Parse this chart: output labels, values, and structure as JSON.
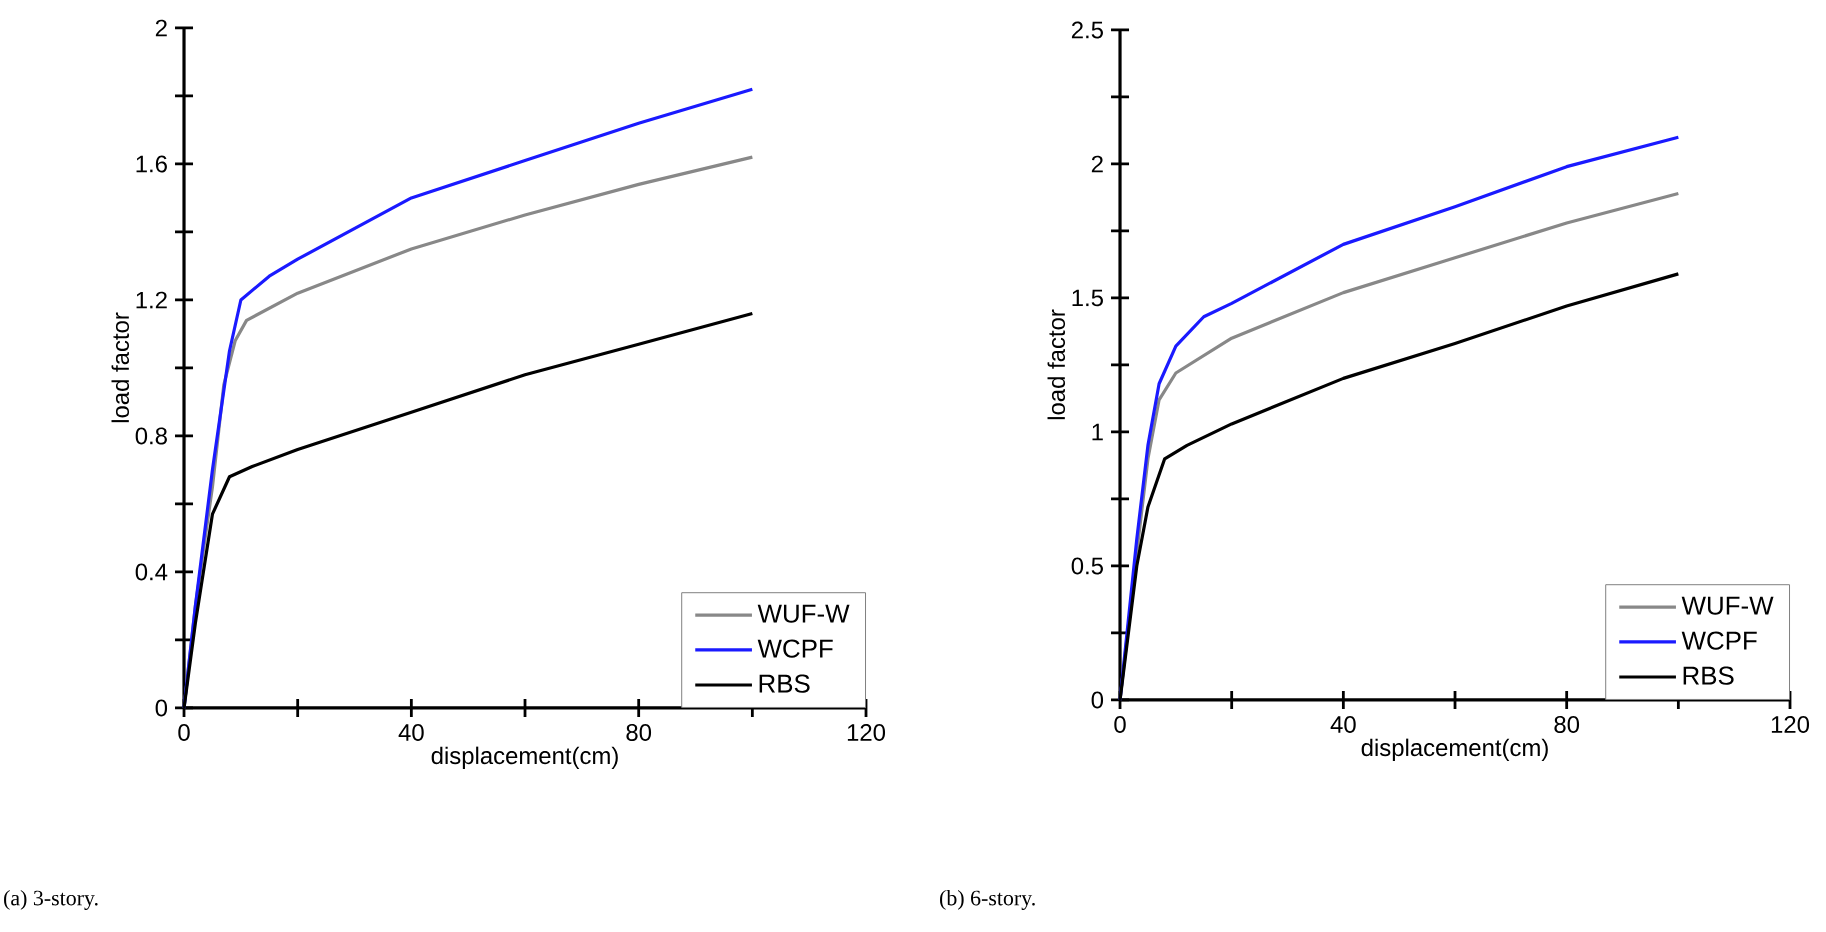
{
  "chart_data": [
    {
      "type": "line",
      "xlabel": "displacement(cm)",
      "ylabel": "load factor",
      "annotations": [
        "(a) 3-story."
      ],
      "xlim": [
        0,
        120
      ],
      "ylim": [
        0,
        2
      ],
      "xticks": [
        0,
        {
          "value": 20,
          "label": null
        },
        40,
        {
          "value": 60,
          "label": null
        },
        80,
        {
          "value": 100,
          "label": null
        },
        120
      ],
      "yticks": [
        0,
        {
          "value": 0.2,
          "label": null
        },
        0.4,
        {
          "value": 0.6,
          "label": null
        },
        0.8,
        {
          "value": 1.0,
          "label": null
        },
        1.2,
        {
          "value": 1.4,
          "label": null
        },
        1.6,
        {
          "value": 1.8,
          "label": null
        },
        2
      ],
      "grid": false,
      "legend": "bottom right",
      "marker": "none",
      "line_style": "solid",
      "series": [
        {
          "name": "WUF-W",
          "color": "#888888",
          "x": [
            0,
            2,
            5,
            7,
            9,
            11,
            20,
            40,
            60,
            80,
            100
          ],
          "values": [
            0,
            0.3,
            0.65,
            0.95,
            1.08,
            1.14,
            1.22,
            1.35,
            1.45,
            1.54,
            1.62
          ]
        },
        {
          "name": "WCPF",
          "color": "#1a1aff",
          "x": [
            0,
            2,
            5,
            8,
            10,
            15,
            20,
            40,
            60,
            80,
            100
          ],
          "values": [
            0,
            0.3,
            0.7,
            1.05,
            1.2,
            1.27,
            1.32,
            1.5,
            1.61,
            1.72,
            1.82
          ]
        },
        {
          "name": "RBS",
          "color": "#000000",
          "x": [
            0,
            2,
            5,
            8,
            12,
            20,
            40,
            60,
            80,
            100
          ],
          "values": [
            0,
            0.25,
            0.57,
            0.68,
            0.71,
            0.76,
            0.87,
            0.98,
            1.07,
            1.16
          ]
        }
      ]
    },
    {
      "type": "line",
      "xlabel": "displacement(cm)",
      "ylabel": "load factor",
      "annotations": [
        "(b) 6-story."
      ],
      "xlim": [
        0,
        120
      ],
      "ylim": [
        0,
        2.5
      ],
      "xticks": [
        0,
        {
          "value": 20,
          "label": null
        },
        40,
        {
          "value": 60,
          "label": null
        },
        80,
        {
          "value": 100,
          "label": null
        },
        120
      ],
      "yticks": [
        0,
        {
          "value": 0.25,
          "label": null
        },
        0.5,
        {
          "value": 0.75,
          "label": null
        },
        1,
        {
          "value": 1.25,
          "label": null
        },
        1.5,
        {
          "value": 1.75,
          "label": null
        },
        2,
        {
          "value": 2.25,
          "label": null
        },
        2.5
      ],
      "grid": false,
      "legend": "bottom right",
      "marker": "none",
      "line_style": "solid",
      "series": [
        {
          "name": "WUF-W",
          "color": "#888888",
          "x": [
            0,
            3,
            5,
            7,
            10,
            20,
            40,
            60,
            80,
            100
          ],
          "values": [
            0,
            0.55,
            0.9,
            1.12,
            1.22,
            1.35,
            1.52,
            1.65,
            1.78,
            1.89
          ]
        },
        {
          "name": "WCPF",
          "color": "#1a1aff",
          "x": [
            0,
            3,
            5,
            7,
            10,
            15,
            20,
            40,
            60,
            80,
            100
          ],
          "values": [
            0,
            0.6,
            0.95,
            1.18,
            1.32,
            1.43,
            1.48,
            1.7,
            1.84,
            1.99,
            2.1
          ]
        },
        {
          "name": "RBS",
          "color": "#000000",
          "x": [
            0,
            3,
            5,
            8,
            12,
            20,
            40,
            60,
            80,
            100
          ],
          "values": [
            0,
            0.5,
            0.72,
            0.9,
            0.95,
            1.03,
            1.2,
            1.33,
            1.47,
            1.59
          ]
        }
      ]
    }
  ]
}
